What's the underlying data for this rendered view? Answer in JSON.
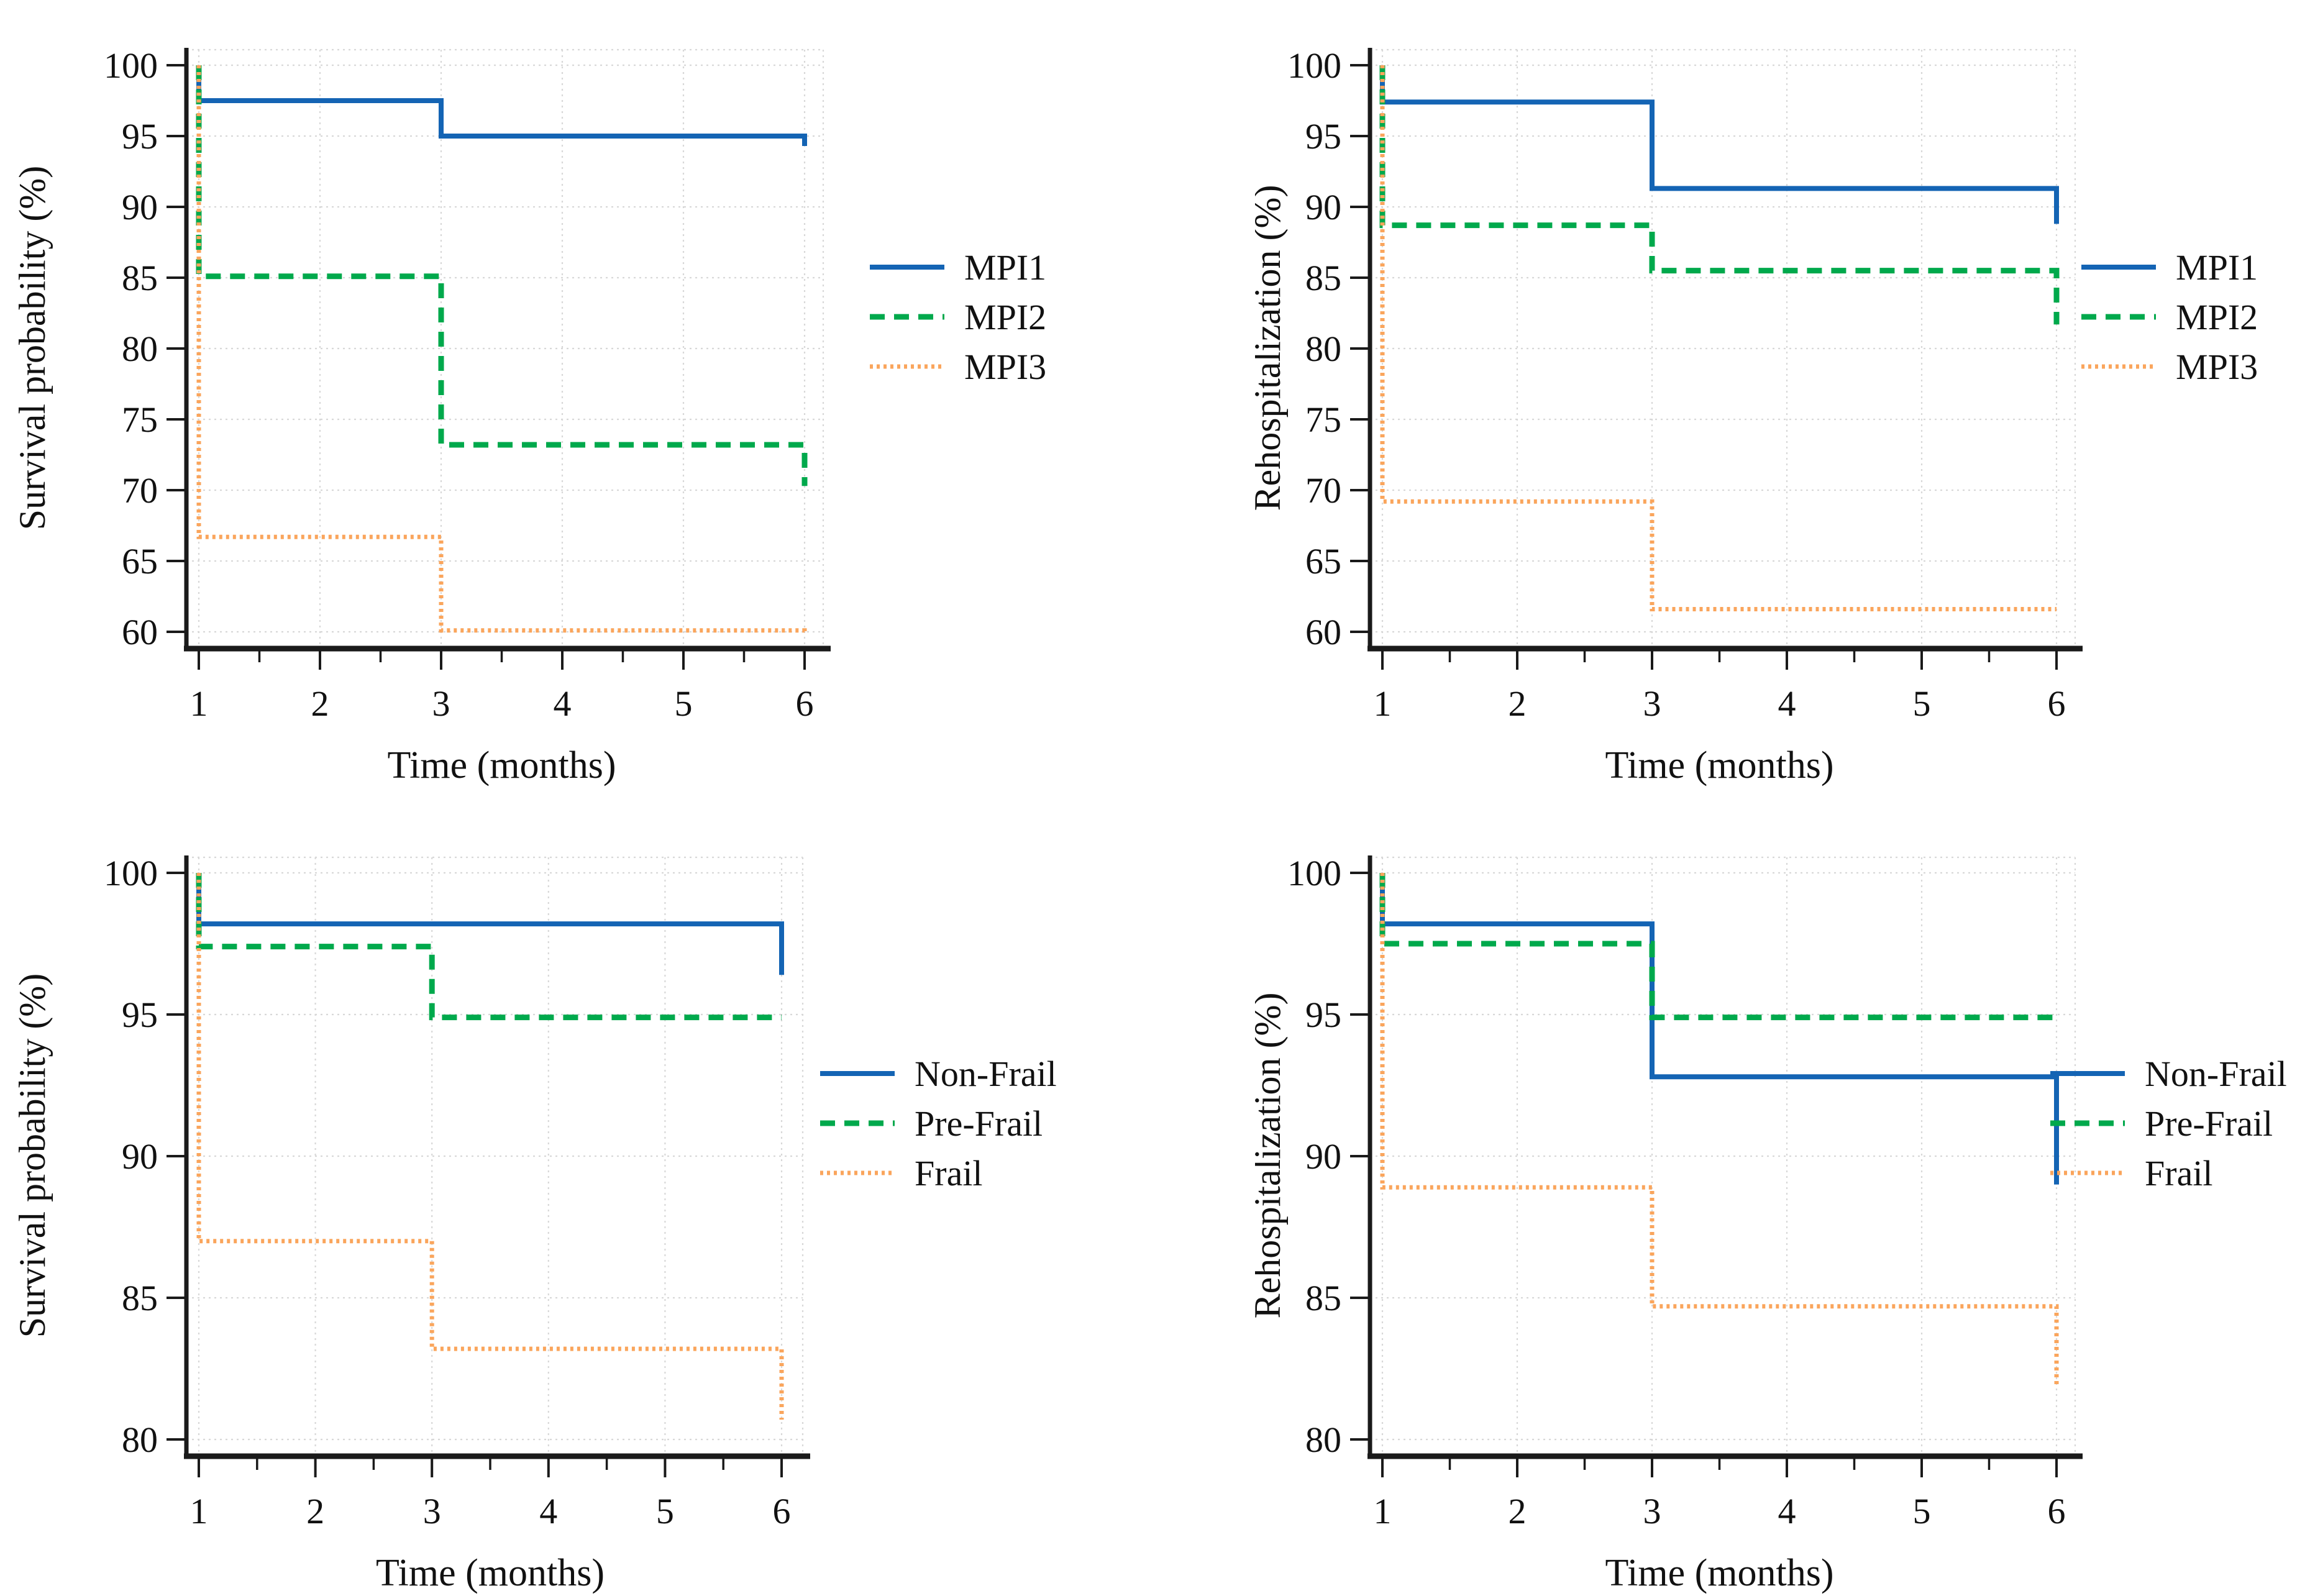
{
  "figure_title": "",
  "colors": {
    "axis": "#1a1a1a",
    "grid": "#d8d8d8",
    "text": "#111111",
    "blue": "#1464b4",
    "green": "#00a94c",
    "orange": "#faa55c"
  },
  "chart_data": [
    {
      "type": "line",
      "subtype": "step",
      "title": "",
      "xlabel": "Time (months)",
      "ylabel": "Survival probability (%)",
      "xlim": [
        1,
        6
      ],
      "ylim": [
        60,
        100
      ],
      "xticks": [
        1,
        2,
        3,
        4,
        5,
        6
      ],
      "xticks_minor": [
        1.5,
        2.5,
        3.5,
        4.5,
        5.5
      ],
      "yticks": [
        60,
        65,
        70,
        75,
        80,
        85,
        90,
        95,
        100
      ],
      "grid": true,
      "legend_position": "right",
      "series": [
        {
          "name": "MPI1",
          "color_key": "blue",
          "linestyle": "solid",
          "points": [
            [
              1,
              100
            ],
            [
              1,
              97.5
            ],
            [
              3,
              97.5
            ],
            [
              3,
              95.0
            ],
            [
              6,
              95.0
            ],
            [
              6,
              94.3
            ]
          ]
        },
        {
          "name": "MPI2",
          "color_key": "green",
          "linestyle": "dashed",
          "points": [
            [
              1,
              100
            ],
            [
              1,
              85.1
            ],
            [
              3,
              85.1
            ],
            [
              3,
              73.2
            ],
            [
              6,
              73.2
            ],
            [
              6,
              70.3
            ]
          ]
        },
        {
          "name": "MPI3",
          "color_key": "orange",
          "linestyle": "dotted",
          "points": [
            [
              1,
              100
            ],
            [
              1,
              66.7
            ],
            [
              3,
              66.7
            ],
            [
              3,
              60.1
            ],
            [
              6,
              60.1
            ],
            [
              6,
              60.0
            ]
          ]
        }
      ]
    },
    {
      "type": "line",
      "subtype": "step",
      "title": "",
      "xlabel": "Time (months)",
      "ylabel": "Rehospitalization (%)",
      "xlim": [
        1,
        6
      ],
      "ylim": [
        60,
        100
      ],
      "xticks": [
        1,
        2,
        3,
        4,
        5,
        6
      ],
      "xticks_minor": [
        1.5,
        2.5,
        3.5,
        4.5,
        5.5
      ],
      "yticks": [
        60,
        65,
        70,
        75,
        80,
        85,
        90,
        95,
        100
      ],
      "grid": true,
      "legend_position": "right",
      "series": [
        {
          "name": "MPI1",
          "color_key": "blue",
          "linestyle": "solid",
          "points": [
            [
              1,
              100
            ],
            [
              1,
              97.4
            ],
            [
              3,
              97.4
            ],
            [
              3,
              91.3
            ],
            [
              6,
              91.3
            ],
            [
              6,
              88.8
            ]
          ]
        },
        {
          "name": "MPI2",
          "color_key": "green",
          "linestyle": "dashed",
          "points": [
            [
              1,
              100
            ],
            [
              1,
              88.7
            ],
            [
              3,
              88.7
            ],
            [
              3,
              85.5
            ],
            [
              6,
              85.5
            ],
            [
              6,
              81.7
            ]
          ]
        },
        {
          "name": "MPI3",
          "color_key": "orange",
          "linestyle": "dotted",
          "points": [
            [
              1,
              100
            ],
            [
              1,
              69.2
            ],
            [
              3,
              69.2
            ],
            [
              3,
              61.6
            ],
            [
              6,
              61.6
            ]
          ]
        }
      ]
    },
    {
      "type": "line",
      "subtype": "step",
      "title": "",
      "xlabel": "Time (months)",
      "ylabel": "Survival probability (%)",
      "xlim": [
        1,
        6
      ],
      "ylim": [
        80,
        100
      ],
      "xticks": [
        1,
        2,
        3,
        4,
        5,
        6
      ],
      "xticks_minor": [
        1.5,
        2.5,
        3.5,
        4.5,
        5.5
      ],
      "yticks": [
        80,
        85,
        90,
        95,
        100
      ],
      "grid": true,
      "legend_position": "right",
      "series": [
        {
          "name": "Non-Frail",
          "color_key": "blue",
          "linestyle": "solid",
          "points": [
            [
              1,
              100
            ],
            [
              1,
              98.2
            ],
            [
              6,
              98.2
            ],
            [
              6,
              96.4
            ]
          ]
        },
        {
          "name": "Pre-Frail",
          "color_key": "green",
          "linestyle": "dashed",
          "points": [
            [
              1,
              100
            ],
            [
              1,
              97.4
            ],
            [
              3,
              97.4
            ],
            [
              3,
              94.9
            ],
            [
              6,
              94.9
            ]
          ]
        },
        {
          "name": "Frail",
          "color_key": "orange",
          "linestyle": "dotted",
          "points": [
            [
              1,
              100
            ],
            [
              1,
              87.0
            ],
            [
              3,
              87.0
            ],
            [
              3,
              83.2
            ],
            [
              6,
              83.2
            ],
            [
              6,
              80.7
            ]
          ]
        }
      ]
    },
    {
      "type": "line",
      "subtype": "step",
      "title": "",
      "xlabel": "Time (months)",
      "ylabel": "Rehospitalization (%)",
      "xlim": [
        1,
        6
      ],
      "ylim": [
        80,
        100
      ],
      "xticks": [
        1,
        2,
        3,
        4,
        5,
        6
      ],
      "xticks_minor": [
        1.5,
        2.5,
        3.5,
        4.5,
        5.5
      ],
      "yticks": [
        80,
        85,
        90,
        95,
        100
      ],
      "grid": true,
      "legend_position": "right",
      "series": [
        {
          "name": "Non-Frail",
          "color_key": "blue",
          "linestyle": "solid",
          "points": [
            [
              1,
              100
            ],
            [
              1,
              98.2
            ],
            [
              3,
              98.2
            ],
            [
              3,
              92.8
            ],
            [
              6,
              92.8
            ],
            [
              6,
              89.0
            ]
          ]
        },
        {
          "name": "Pre-Frail",
          "color_key": "green",
          "linestyle": "dashed",
          "points": [
            [
              1,
              100
            ],
            [
              1,
              97.5
            ],
            [
              3,
              97.5
            ],
            [
              3,
              94.9
            ],
            [
              6,
              94.9
            ]
          ]
        },
        {
          "name": "Frail",
          "color_key": "orange",
          "linestyle": "dotted",
          "points": [
            [
              1,
              100
            ],
            [
              1,
              88.9
            ],
            [
              3,
              88.9
            ],
            [
              3,
              84.7
            ],
            [
              6,
              84.7
            ],
            [
              6,
              81.9
            ]
          ]
        }
      ]
    }
  ]
}
